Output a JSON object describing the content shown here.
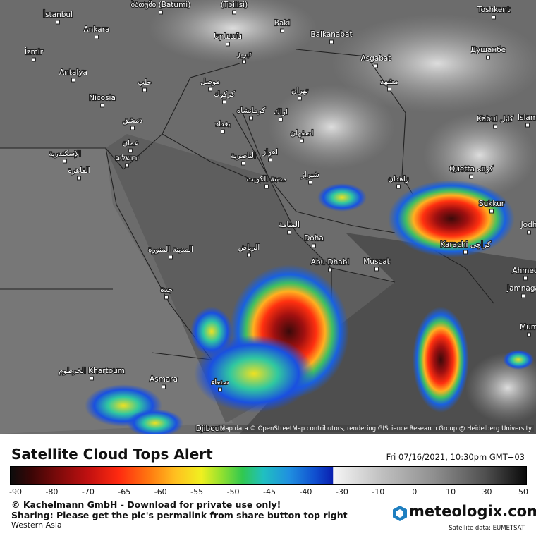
{
  "map": {
    "labels": [
      "ბათუმი (Batumi)",
      "(Tbilisi)",
      "İstanbul",
      "Ankara",
      "Երևան",
      "Baki",
      "Balkanabat",
      "Toshkent",
      "Душанбе",
      "İzmir",
      "Asgabat",
      "تبريز",
      "Antalya",
      "حلب",
      "موصل",
      "مشهد",
      "تهران",
      "Nicosia",
      "كركوك",
      "كرمانشاه",
      "اراك",
      "Kabul كابل",
      "Islam",
      "دمشق",
      "بغداد",
      "اصفهان",
      "عمان",
      "الإسكندرية",
      "ירושלים",
      "اهواز",
      "الناصرية",
      "القاهرة",
      "Quetta کوئٹہ",
      "مدينة الكويت",
      "شيراز",
      "زاهدان",
      "Sukkur",
      "المنامة",
      "Doha",
      "Karachi کراچی",
      "المدينة المنورة",
      "الرياض",
      "Abu Dhabi",
      "Muscat",
      "Ahmed",
      "جدة",
      "Jamnaga",
      "Mum",
      "الخرطوم Khartoum",
      "Asmara",
      "صنعاء",
      "Djibouti",
      "Jodh"
    ],
    "attribution": "Map data © OpenStreetMap contributors, rendering GIScience Research Group @ Heidelberg University"
  },
  "header": {
    "title": "Satellite Cloud Tops Alert",
    "timestamp": "Fri 07/16/2021, 10:30pm GMT+03"
  },
  "legend": {
    "ticks": [
      -90,
      -80,
      -70,
      -65,
      -60,
      -55,
      -50,
      -45,
      -40,
      -30,
      -10,
      0,
      10,
      30,
      50
    ]
  },
  "footer": {
    "copyright": "© Kachelmann GmbH - Download for private use only!",
    "sharing": "Sharing: Please get the pic's permalink from share button top right",
    "region": "Western Asia",
    "logo": "meteologix.com",
    "source": "Satellite data: EUMETSAT"
  }
}
